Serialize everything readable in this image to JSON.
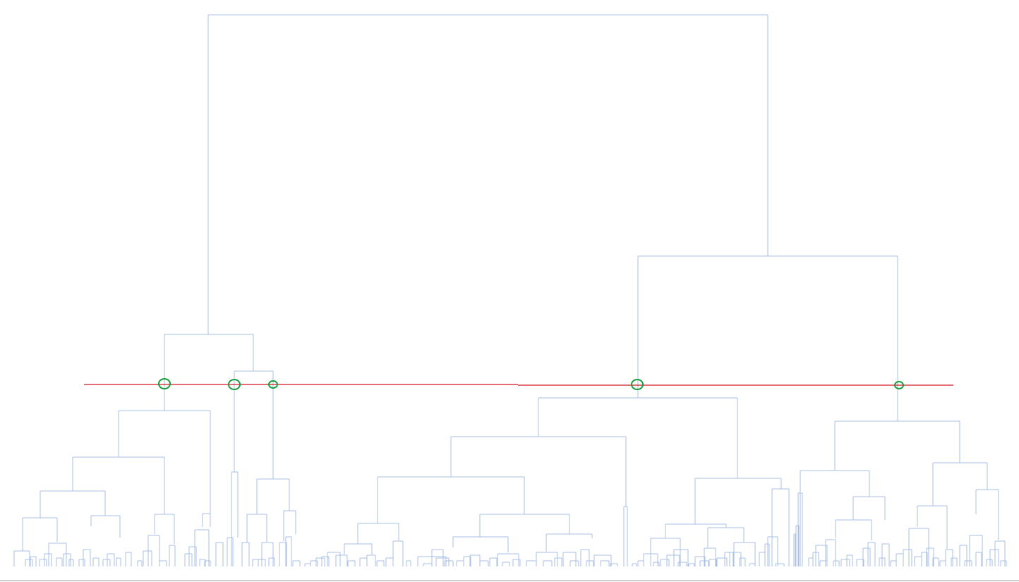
{
  "diagram": {
    "type": "dendrogram",
    "colors": {
      "branches": "#a9bfe3",
      "cut_line": "#d2161e",
      "cluster_markers": "#1a9b3c",
      "baseline": "#cfcfcf"
    },
    "cluster_count_at_cut": 5
  }
}
